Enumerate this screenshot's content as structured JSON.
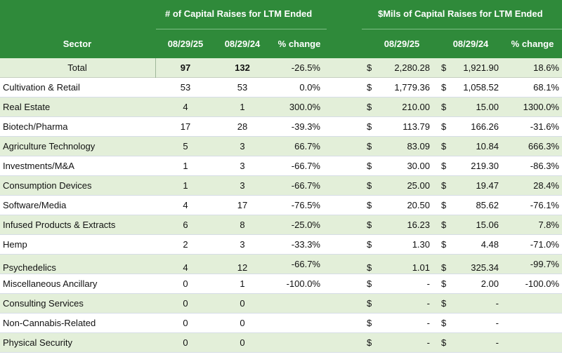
{
  "header": {
    "group_count": "# of Capital Raises for LTM  Ended",
    "group_dollars": "$Mils of Capital Raises for LTM Ended",
    "col_sector": "Sector",
    "col_count_2025": "08/29/25",
    "col_count_2024": "08/29/24",
    "col_count_change": "% change",
    "col_dollar_2025": "08/29/25",
    "col_dollar_2024": "08/29/24",
    "col_dollar_change": "% change"
  },
  "rows": [
    {
      "sector": "Total",
      "n25": "97",
      "n24": "132",
      "pct1": "-26.5%",
      "d1": "$",
      "v25": "2,280.28",
      "d2": "$",
      "v24": "1,921.90",
      "pct2": "18.6%"
    },
    {
      "sector": "Cultivation & Retail",
      "n25": "53",
      "n24": "53",
      "pct1": "0.0%",
      "d1": "$",
      "v25": "1,779.36",
      "d2": "$",
      "v24": "1,058.52",
      "pct2": "68.1%"
    },
    {
      "sector": "Real Estate",
      "n25": "4",
      "n24": "1",
      "pct1": "300.0%",
      "d1": "$",
      "v25": "210.00",
      "d2": "$",
      "v24": "15.00",
      "pct2": "1300.0%"
    },
    {
      "sector": "Biotech/Pharma",
      "n25": "17",
      "n24": "28",
      "pct1": "-39.3%",
      "d1": "$",
      "v25": "113.79",
      "d2": "$",
      "v24": "166.26",
      "pct2": "-31.6%"
    },
    {
      "sector": "Agriculture Technology",
      "n25": "5",
      "n24": "3",
      "pct1": "66.7%",
      "d1": "$",
      "v25": "83.09",
      "d2": "$",
      "v24": "10.84",
      "pct2": "666.3%"
    },
    {
      "sector": "Investments/M&A",
      "n25": "1",
      "n24": "3",
      "pct1": "-66.7%",
      "d1": "$",
      "v25": "30.00",
      "d2": "$",
      "v24": "219.30",
      "pct2": "-86.3%"
    },
    {
      "sector": "Consumption Devices",
      "n25": "1",
      "n24": "3",
      "pct1": "-66.7%",
      "d1": "$",
      "v25": "25.00",
      "d2": "$",
      "v24": "19.47",
      "pct2": "28.4%"
    },
    {
      "sector": "Software/Media",
      "n25": "4",
      "n24": "17",
      "pct1": "-76.5%",
      "d1": "$",
      "v25": "20.50",
      "d2": "$",
      "v24": "85.62",
      "pct2": "-76.1%"
    },
    {
      "sector": "Infused Products & Extracts",
      "n25": "6",
      "n24": "8",
      "pct1": "-25.0%",
      "d1": "$",
      "v25": "16.23",
      "d2": "$",
      "v24": "15.06",
      "pct2": "7.8%"
    },
    {
      "sector": "Hemp",
      "n25": "2",
      "n24": "3",
      "pct1": "-33.3%",
      "d1": "$",
      "v25": "1.30",
      "d2": "$",
      "v24": "4.48",
      "pct2": "-71.0%"
    },
    {
      "sector": "Psychedelics",
      "n25": "4",
      "n24": "12",
      "pct1": "-66.7%",
      "d1": "$",
      "v25": "1.01",
      "d2": "$",
      "v24": "325.34",
      "pct2": "-99.7%"
    },
    {
      "sector": "Miscellaneous Ancillary",
      "n25": "0",
      "n24": "1",
      "pct1": "-100.0%",
      "d1": "$",
      "v25": "-",
      "d2": "$",
      "v24": "2.00",
      "pct2": "-100.0%"
    },
    {
      "sector": "Consulting Services",
      "n25": "0",
      "n24": "0",
      "pct1": "",
      "d1": "$",
      "v25": "-",
      "d2": "$",
      "v24": "-",
      "pct2": ""
    },
    {
      "sector": "Non-Cannabis-Related",
      "n25": "0",
      "n24": "0",
      "pct1": "",
      "d1": "$",
      "v25": "-",
      "d2": "$",
      "v24": "-",
      "pct2": ""
    },
    {
      "sector": "Physical Security",
      "n25": "0",
      "n24": "0",
      "pct1": "",
      "d1": "$",
      "v25": "-",
      "d2": "$",
      "v24": "-",
      "pct2": ""
    }
  ],
  "colors": {
    "header_green": "#2f8a3a",
    "row_shade": "#e3efd9"
  }
}
